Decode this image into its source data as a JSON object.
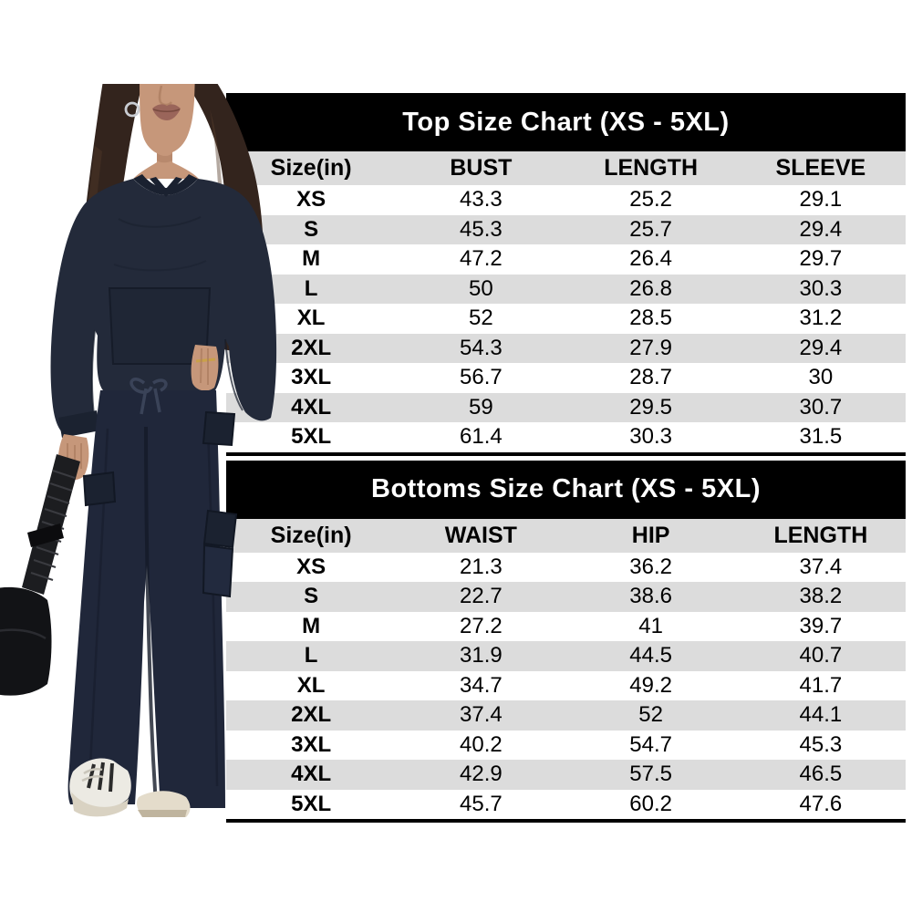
{
  "image_type": "product-size-chart-composite",
  "photo": {
    "description": "model wearing navy knit hoodie and wide-leg cargo pants, holding black shoulder bag, white sneakers, face cropped above nose",
    "colors": {
      "outfit_navy": "#232a3a",
      "outfit_navy_dark": "#1b2230",
      "pants_navy": "#20273a",
      "hair_brown": "#33241d",
      "skin": "#c6977a",
      "lips": "#9a655a",
      "bag_black": "#141517",
      "sneaker_white": "#eceae3",
      "earring_silver": "#c9ccd2"
    }
  },
  "colors": {
    "title_bar_bg": "#000000",
    "title_text": "#ffffff",
    "row_shaded": "#dcdcdc",
    "row_plain": "#ffffff",
    "table_text": "#000000"
  },
  "chart_data": [
    {
      "type": "table",
      "title": "Top Size Chart (XS - 5XL)",
      "columns": [
        "Size(in)",
        "BUST",
        "LENGTH",
        "SLEEVE"
      ],
      "rows": [
        [
          "XS",
          "43.3",
          "25.2",
          "29.1"
        ],
        [
          "S",
          "45.3",
          "25.7",
          "29.4"
        ],
        [
          "M",
          "47.2",
          "26.4",
          "29.7"
        ],
        [
          "L",
          "50",
          "26.8",
          "30.3"
        ],
        [
          "XL",
          "52",
          "28.5",
          "31.2"
        ],
        [
          "2XL",
          "54.3",
          "27.9",
          "29.4"
        ],
        [
          "3XL",
          "56.7",
          "28.7",
          "30"
        ],
        [
          "4XL",
          "59",
          "29.5",
          "30.7"
        ],
        [
          "5XL",
          "61.4",
          "30.3",
          "31.5"
        ]
      ]
    },
    {
      "type": "table",
      "title": "Bottoms Size Chart (XS - 5XL)",
      "columns": [
        "Size(in)",
        "WAIST",
        "HIP",
        "LENGTH"
      ],
      "rows": [
        [
          "XS",
          "21.3",
          "36.2",
          "37.4"
        ],
        [
          "S",
          "22.7",
          "38.6",
          "38.2"
        ],
        [
          "M",
          "27.2",
          "41",
          "39.7"
        ],
        [
          "L",
          "31.9",
          "44.5",
          "40.7"
        ],
        [
          "XL",
          "34.7",
          "49.2",
          "41.7"
        ],
        [
          "2XL",
          "37.4",
          "52",
          "44.1"
        ],
        [
          "3XL",
          "40.2",
          "54.7",
          "45.3"
        ],
        [
          "4XL",
          "42.9",
          "57.5",
          "46.5"
        ],
        [
          "5XL",
          "45.7",
          "60.2",
          "47.6"
        ]
      ]
    }
  ]
}
